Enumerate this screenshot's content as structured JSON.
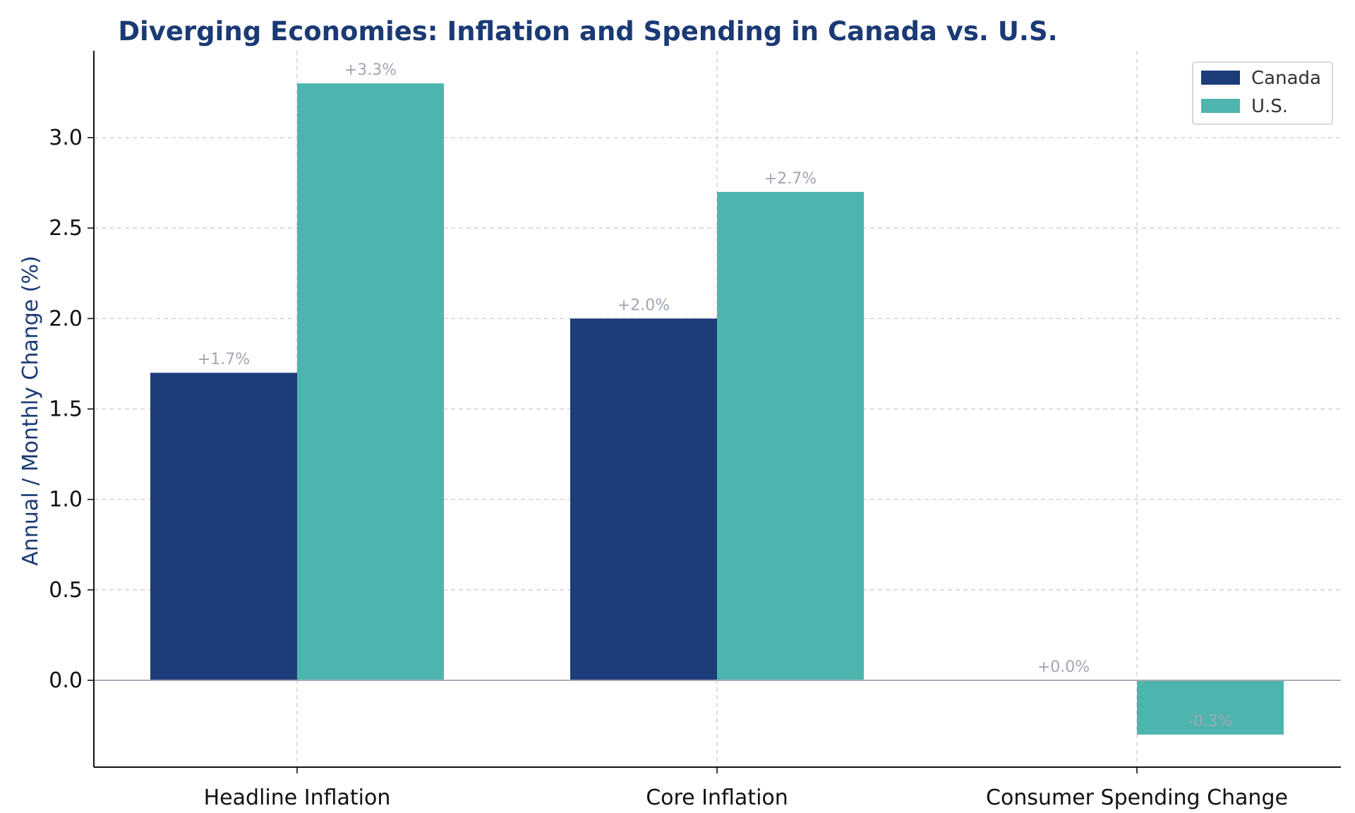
{
  "chart_data": {
    "type": "bar",
    "title": "Diverging Economies: Inflation and Spending in Canada vs. U.S.",
    "xlabel": "",
    "ylabel": "Annual / Monthly Change (%)",
    "categories": [
      "Headline Inflation",
      "Core Inflation",
      "Consumer Spending Change"
    ],
    "series": [
      {
        "name": "Canada",
        "color": "#1c3c7a",
        "values": [
          1.7,
          2.0,
          0.0
        ],
        "labels": [
          "+1.7%",
          "+2.0%",
          "+0.0%"
        ]
      },
      {
        "name": "U.S.",
        "color": "#4db5ad",
        "values": [
          3.3,
          2.7,
          -0.3
        ],
        "labels": [
          "+3.3%",
          "+2.7%",
          "-0.3%"
        ]
      }
    ],
    "ylim": [
      -0.48,
      3.48
    ],
    "yticks": [
      0.0,
      0.5,
      1.0,
      1.5,
      2.0,
      2.5,
      3.0
    ],
    "ytick_labels": [
      "0.0",
      "0.5",
      "1.0",
      "1.5",
      "2.0",
      "2.5",
      "3.0"
    ],
    "grid": true,
    "legend_position": "top-right",
    "zero_line_color": "#a9aab5",
    "title_color": "#1b3a75",
    "ylabel_color": "#1b3a75",
    "data_label_color": "#a0a6b2"
  }
}
